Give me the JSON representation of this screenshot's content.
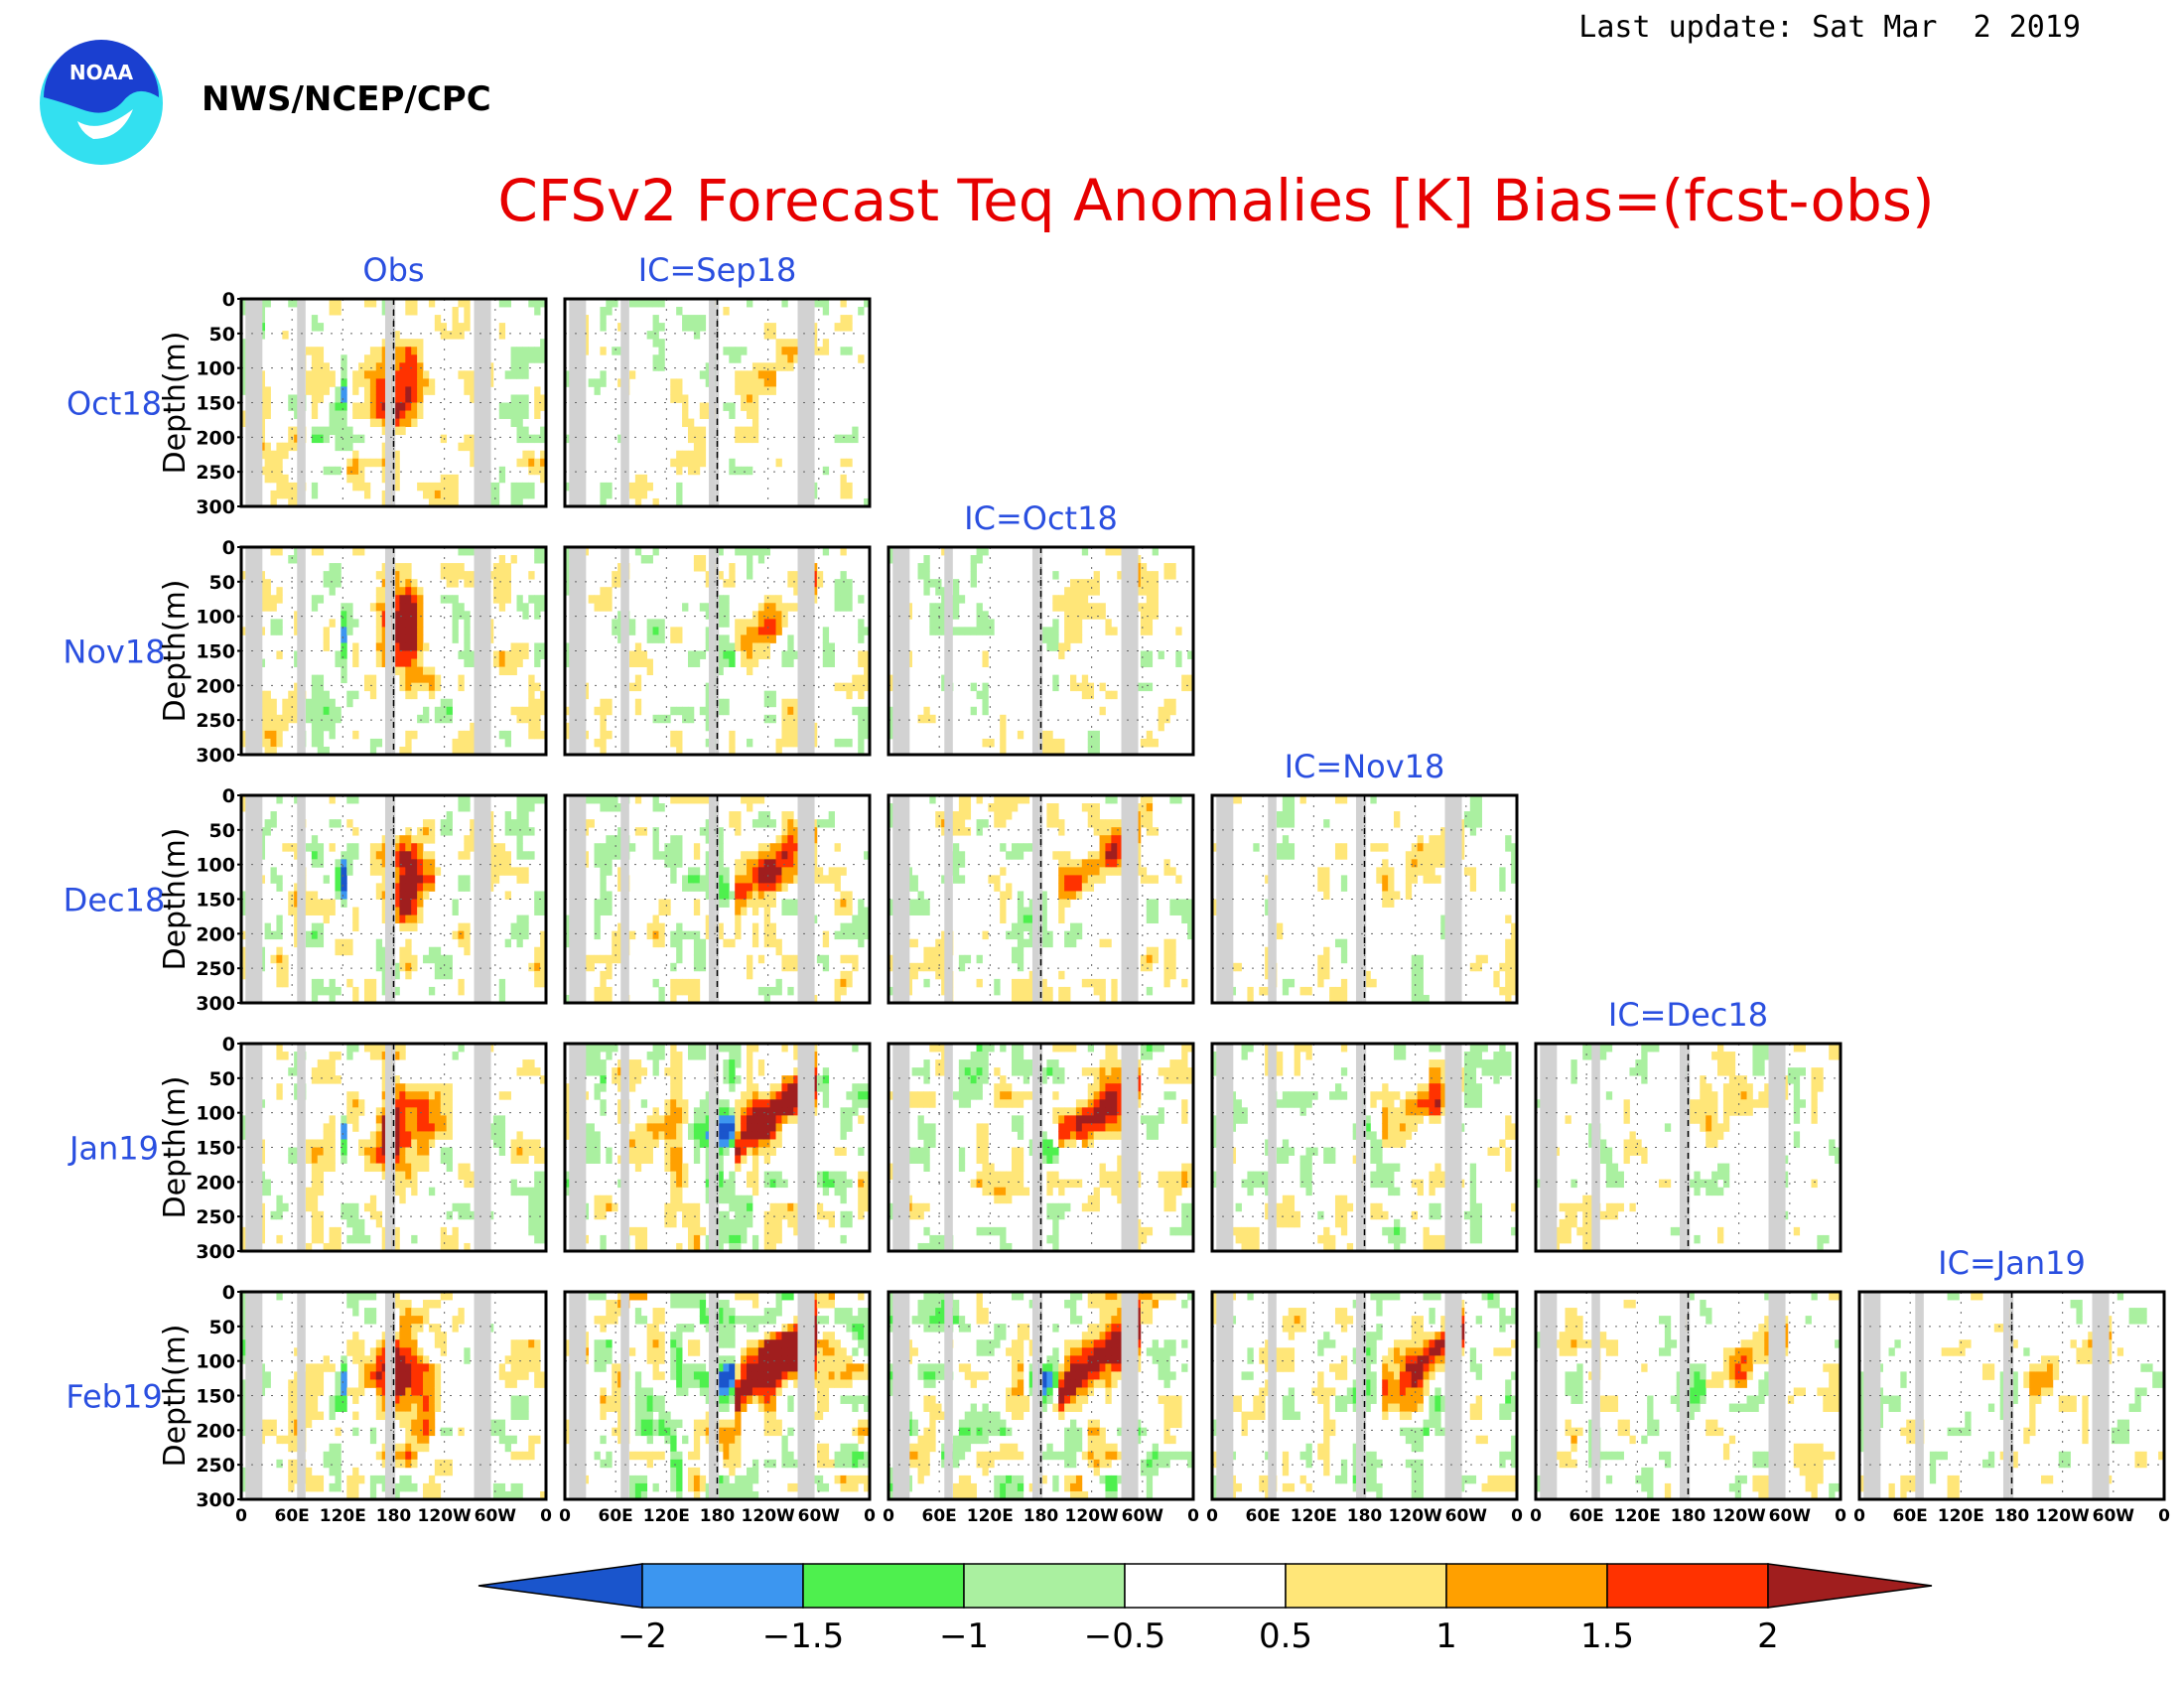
{
  "header": {
    "last_update": "Last update: Sat Mar  2 2019",
    "org": "NWS/NCEP/CPC",
    "logo_text": "NOAA",
    "title": "CFSv2 Forecast Teq Anomalies [K] Bias=(fcst-obs)"
  },
  "colors": {
    "below_-2": "#1a55cc",
    "-2_to_-1.5": "#3c96f0",
    "-1.5_to_-1": "#4ef04e",
    "-1_to_-0.5": "#aaf0a0",
    "-0.5_to_0.5": "#ffffff",
    "0.5_to_1": "#ffe678",
    "1_to_1.5": "#ffa000",
    "1.5_to_2": "#ff3200",
    "above_2": "#a01e1e",
    "land_mask": "#d2d2d2",
    "label_blue": "#2a4fe0",
    "title_red": "#e60000"
  },
  "chart_data": {
    "type": "heatmap",
    "panel_grid": {
      "row_labels": [
        "Oct18",
        "Nov18",
        "Dec18",
        "Jan19",
        "Feb19"
      ],
      "column_titles": [
        "Obs",
        "IC=Sep18",
        "IC=Oct18",
        "IC=Nov18",
        "IC=Dec18",
        "IC=Jan19"
      ],
      "columns_present_per_row": [
        2,
        3,
        4,
        5,
        6
      ]
    },
    "ylabel": "Depth(m)",
    "y_ticks": [
      "0",
      "50",
      "100",
      "150",
      "200",
      "250",
      "300"
    ],
    "ylim": [
      300,
      0
    ],
    "x_ticks": [
      "0",
      "60E",
      "120E",
      "180",
      "120W",
      "60W",
      "0"
    ],
    "xlim": [
      0,
      360
    ],
    "colorbar": {
      "levels": [
        "−2",
        "−1.5",
        "−1",
        "−0.5",
        "0.5",
        "1",
        "1.5",
        "2"
      ],
      "level_values": [
        -2,
        -1.5,
        -1,
        -0.5,
        0.5,
        1,
        1.5,
        2
      ],
      "extend": "both"
    },
    "land_bands_lon": [
      [
        5,
        25
      ],
      [
        66,
        76
      ],
      [
        170,
        178
      ],
      [
        178,
        182
      ]
    ],
    "dashed_lon": 180
  }
}
